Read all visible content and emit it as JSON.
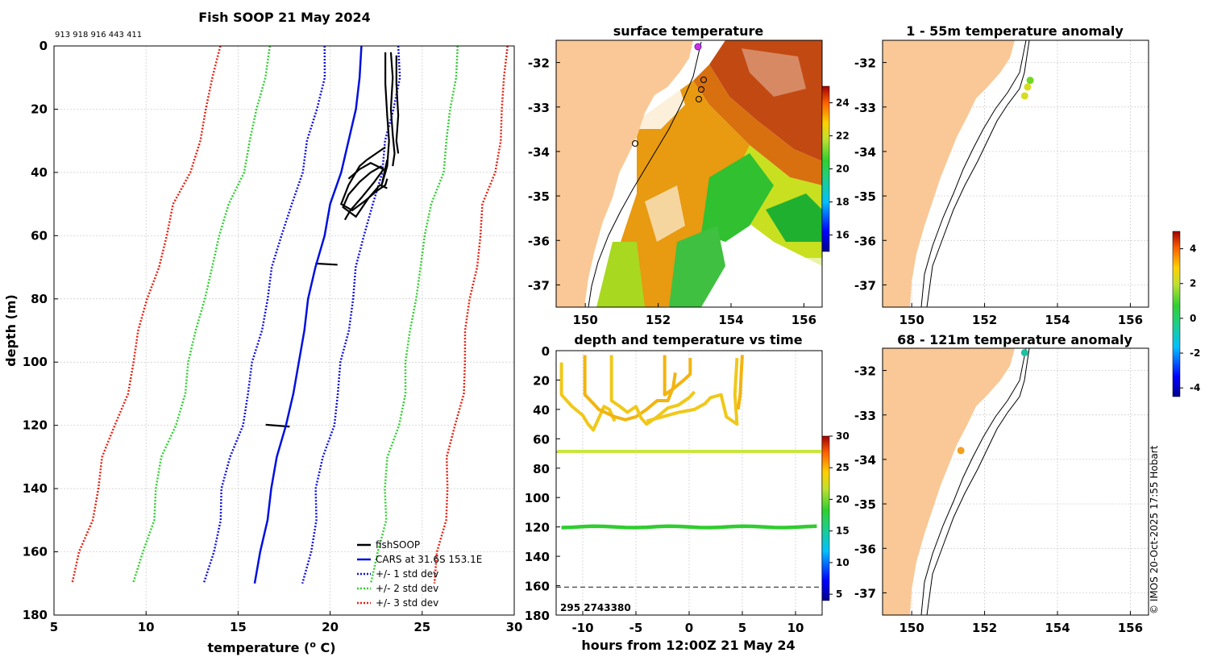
{
  "colors": {
    "land": "#f9c896",
    "fish": "#000000",
    "cars": "#0010e0",
    "std1": "#1010e0",
    "std2": "#30d030",
    "std3": "#e82010",
    "dashed": "#444444"
  },
  "footer": {
    "credit": "© IMOS 20-Oct-2025 17:55 Hobart"
  },
  "chart_data": [
    {
      "id": "profile",
      "type": "line",
      "title": "Fish SOOP 21 May 2024",
      "subtitle": "913 918 916 443 411",
      "xlabel": "temperature (",
      "xlabel_sup": "o",
      "xlabel_tail": " C)",
      "ylabel": "depth (m)",
      "xlim": [
        5,
        30
      ],
      "ylim": [
        0,
        180
      ],
      "xticks": [
        "5",
        "10",
        "15",
        "20",
        "25",
        "30"
      ],
      "yticks": [
        "0",
        "20",
        "40",
        "60",
        "80",
        "100",
        "120",
        "140",
        "160",
        "180"
      ],
      "legend": [
        "fishSOOP",
        "CARS at 31.6S 153.1E",
        "+/- 1 std dev",
        "+/- 2 std dev",
        "+/- 3 std dev"
      ],
      "legend_position": "bottom-right",
      "cars": {
        "depth": [
          0,
          10,
          20,
          30,
          40,
          50,
          60,
          70,
          80,
          90,
          100,
          110,
          120,
          130,
          140,
          150,
          160,
          170
        ],
        "temp": [
          21.7,
          21.6,
          21.4,
          21.0,
          20.6,
          20.0,
          19.7,
          19.2,
          18.8,
          18.6,
          18.3,
          18.0,
          17.6,
          17.1,
          16.8,
          16.6,
          16.2,
          15.9
        ]
      },
      "std_offsets": [
        2.0,
        5.1,
        7.8
      ],
      "fish_segments": [
        {
          "temp": [
            23.0,
            23.0,
            23.1,
            23.2,
            23.1,
            22.8,
            23.1
          ],
          "depth": [
            2,
            12,
            22,
            30,
            38,
            44,
            36
          ]
        },
        {
          "temp": [
            23.3,
            23.4,
            23.3,
            23.4,
            23.5,
            23.4
          ],
          "depth": [
            2,
            10,
            20,
            28,
            34,
            38
          ]
        },
        {
          "temp": [
            23.6,
            23.6,
            23.7,
            23.6,
            23.7
          ],
          "depth": [
            3,
            12,
            22,
            30,
            34
          ]
        },
        {
          "temp": [
            23.0,
            22.5,
            22.0,
            21.6,
            21.3,
            21.0,
            20.8,
            20.6,
            21.2,
            21.9,
            22.5,
            23.0,
            23.1
          ],
          "depth": [
            32,
            34,
            36,
            38,
            41,
            44,
            47,
            50,
            52,
            49,
            46,
            44,
            42
          ]
        },
        {
          "temp": [
            22.8,
            22.2,
            21.6,
            21.0,
            20.7,
            21.4,
            22.1,
            22.7,
            23.1
          ],
          "depth": [
            38,
            40,
            43,
            47,
            51,
            54,
            48,
            44,
            45
          ]
        },
        {
          "temp": [
            21.0,
            21.6,
            22.2,
            22.9,
            22.4,
            21.7,
            21.1,
            20.8
          ],
          "depth": [
            42,
            39,
            37,
            39,
            43,
            48,
            52,
            55
          ]
        },
        {
          "temp": [
            19.2,
            20.4
          ],
          "depth": [
            68.8,
            69.2
          ]
        },
        {
          "temp": [
            16.5,
            17.8
          ],
          "depth": [
            119.8,
            120.4
          ]
        }
      ]
    },
    {
      "id": "sst_map",
      "type": "heatmap",
      "title": "surface temperature",
      "xlim": [
        149.2,
        156.5
      ],
      "ylim": [
        -37.5,
        -31.5
      ],
      "xticks": [
        "150",
        "152",
        "154",
        "156"
      ],
      "yticks": [
        "-32",
        "-33",
        "-34",
        "-35",
        "-36",
        "-37"
      ],
      "colorbar": {
        "min": 15,
        "max": 25,
        "ticks": [
          "16",
          "18",
          "20",
          "22",
          "24"
        ]
      }
    },
    {
      "id": "depth_time",
      "type": "scatter",
      "title": "depth and temperature vs time",
      "xlabel": "hours from 12:00Z 21 May 24",
      "xlim": [
        -12.5,
        12.5
      ],
      "ylim": [
        0,
        180
      ],
      "xticks": [
        "-10",
        "-5",
        "0",
        "5",
        "10"
      ],
      "yticks": [
        "0",
        "20",
        "40",
        "60",
        "80",
        "100",
        "120",
        "140",
        "160",
        "180"
      ],
      "annotation": "295 2743380",
      "dashed_depths": [
        69,
        161
      ],
      "colorbar": {
        "min": 4,
        "max": 30,
        "ticks": [
          "5",
          "10",
          "15",
          "20",
          "25",
          "30"
        ]
      },
      "series": [
        {
          "name": "shallow",
          "temp_color": "#f0c010"
        },
        {
          "name": "69m",
          "temp_color": "#c8e640"
        },
        {
          "name": "120m",
          "temp_color": "#30cc30"
        }
      ]
    },
    {
      "id": "anom_shallow",
      "type": "scatter",
      "title": "1 - 55m temperature anomaly",
      "xlim": [
        149.2,
        156.5
      ],
      "ylim": [
        -37.5,
        -31.5
      ],
      "xticks": [
        "150",
        "152",
        "154",
        "156"
      ],
      "yticks": [
        "-32",
        "-33",
        "-34",
        "-35",
        "-36",
        "-37"
      ],
      "points": [
        {
          "lon": 153.25,
          "lat": -32.4,
          "anom": 1.0
        },
        {
          "lon": 153.18,
          "lat": -32.55,
          "anom": 1.4
        },
        {
          "lon": 153.1,
          "lat": -32.75,
          "anom": 1.9
        }
      ]
    },
    {
      "id": "anom_deep",
      "type": "scatter",
      "title": "68 - 121m temperature anomaly",
      "xlim": [
        149.2,
        156.5
      ],
      "ylim": [
        -37.5,
        -31.5
      ],
      "xticks": [
        "150",
        "152",
        "154",
        "156"
      ],
      "yticks": [
        "-32",
        "-33",
        "-34",
        "-35",
        "-36",
        "-37"
      ],
      "points": [
        {
          "lon": 153.1,
          "lat": -31.6,
          "anom": -1.2
        },
        {
          "lon": 151.35,
          "lat": -33.8,
          "anom": 2.8
        }
      ]
    },
    {
      "id": "anom_colorbar",
      "type": "heatmap",
      "min": -4.5,
      "max": 5,
      "ticks": [
        "4",
        "2",
        "0",
        "-2",
        "-4"
      ]
    }
  ]
}
